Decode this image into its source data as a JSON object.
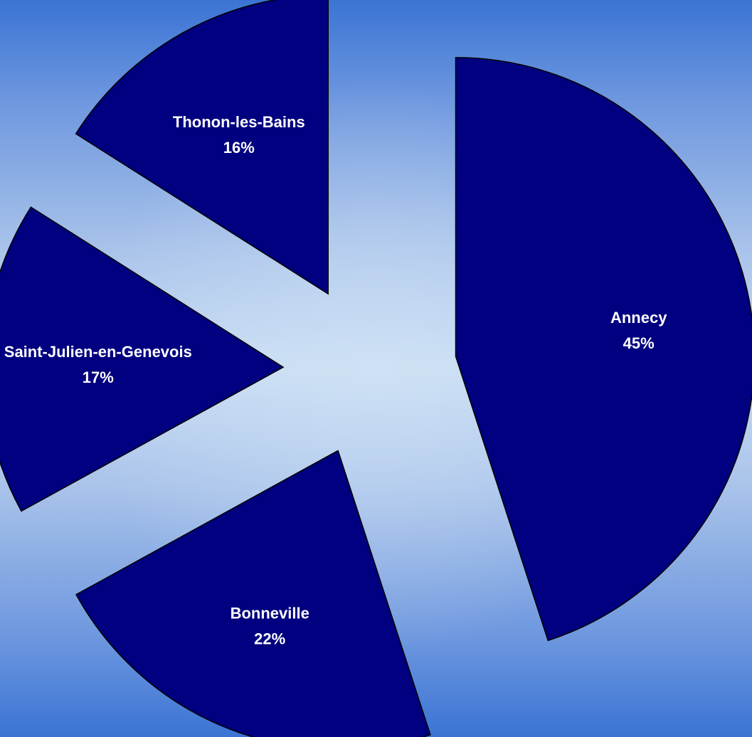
{
  "chart_data": {
    "type": "pie",
    "title": "",
    "slices": [
      {
        "label": "Annecy",
        "value": 45,
        "value_label": "45%"
      },
      {
        "label": "Bonneville",
        "value": 22,
        "value_label": "22%"
      },
      {
        "label": "Saint-Julien-en-Genevois",
        "value": 17,
        "value_label": "17%"
      },
      {
        "label": "Thonon-les-Bains",
        "value": 16,
        "value_label": "16%"
      }
    ],
    "legend": "none",
    "exploded": true,
    "colors": {
      "slice_fill": "#000080",
      "slice_stroke": "#000000",
      "label_text": "#ffffff",
      "background_edge": "#3b74d4",
      "background_center": "#c9ddf3"
    }
  }
}
